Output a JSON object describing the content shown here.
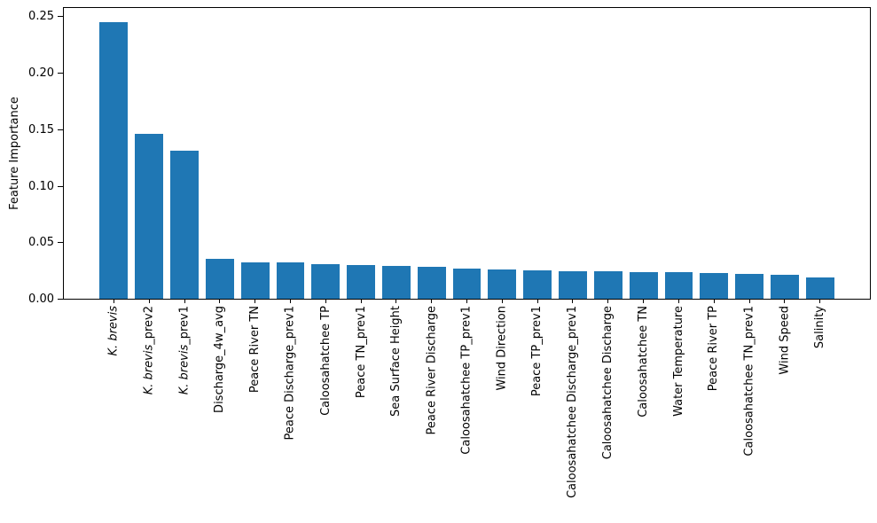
{
  "chart_data": {
    "type": "bar",
    "title": "",
    "xlabel": "",
    "ylabel": "Feature Importance",
    "bar_color": "#1f77b4",
    "background_color": "#ffffff",
    "axis_color": "#000000",
    "grid": false,
    "legend": "none",
    "ylim": [
      0,
      0.259
    ],
    "yticks": [
      0,
      0.05,
      0.1,
      0.15,
      0.2,
      0.25
    ],
    "ytick_labels": [
      "0.00",
      "0.05",
      "0.10",
      "0.15",
      "0.20",
      "0.25"
    ],
    "categories": [
      "K. brevis",
      "K. brevis_prev2",
      "K. brevis_prev1",
      "Discharge_4w_avg",
      "Peace River TN",
      "Peace Discharge_prev1",
      "Caloosahatchee TP",
      "Peace TN_prev1",
      "Sea Surface Height",
      "Peace River Discharge",
      "Caloosahatchee TP_prev1",
      "Wind Direction",
      "Peace TP_prev1",
      "Caloosahatchee Discharge_prev1",
      "Caloosahatchee Discharge",
      "Caloosahatchee TN",
      "Water Temperature",
      "Peace River TP",
      "Caloosahatchee TN_prev1",
      "Wind Speed",
      "Salinity"
    ],
    "italic_segment": "K. brevis",
    "italic_categories": [
      0,
      1,
      2
    ],
    "values": [
      0.245,
      0.146,
      0.131,
      0.035,
      0.032,
      0.032,
      0.031,
      0.03,
      0.029,
      0.028,
      0.027,
      0.026,
      0.025,
      0.024,
      0.024,
      0.0235,
      0.0235,
      0.023,
      0.022,
      0.021,
      0.019
    ]
  }
}
